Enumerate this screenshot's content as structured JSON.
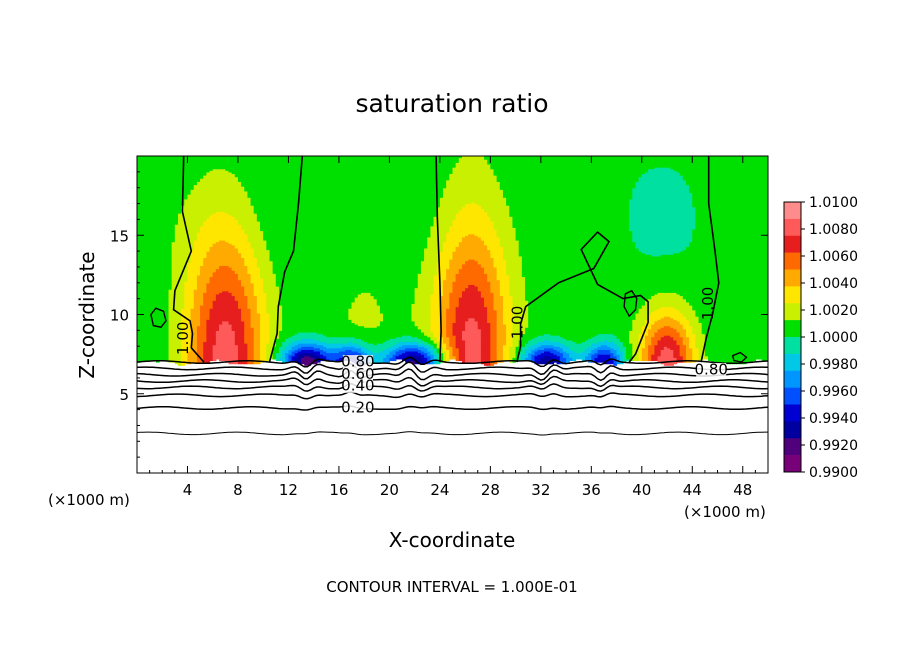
{
  "chart_data": {
    "type": "heatmap",
    "title": "saturation ratio",
    "xlabel": "X-coordinate",
    "ylabel": "Z-coordinate",
    "x_unit_left": "(×1000 m)",
    "x_unit_right": "(×1000 m)",
    "footer": "CONTOUR INTERVAL = 1.000E-01",
    "xlim": [
      0,
      50
    ],
    "ylim": [
      0,
      20
    ],
    "x_ticks": [
      4,
      8,
      12,
      16,
      20,
      24,
      28,
      32,
      36,
      40,
      44,
      48
    ],
    "y_ticks": [
      5,
      10,
      15
    ],
    "colorbar": {
      "levels": [
        "1.0100",
        "1.0080",
        "1.0060",
        "1.0040",
        "1.0020",
        "1.0000",
        "0.9980",
        "0.9960",
        "0.9940",
        "0.9920",
        "0.9900"
      ],
      "colors": [
        "#ff8c8c",
        "#ff5a5a",
        "#e61e1e",
        "#ff6a00",
        "#ffaa00",
        "#ffe600",
        "#c8f000",
        "#00e000",
        "#00e0a0",
        "#00c8e6",
        "#0096ff",
        "#0050ff",
        "#0000d2",
        "#0000a0",
        "#50007a",
        "#780078"
      ]
    },
    "contour_labels": [
      {
        "text": "1.00",
        "x": 3.7,
        "z": 8.5
      },
      {
        "text": "1.00",
        "x": 30.2,
        "z": 9.5
      },
      {
        "text": "1.00",
        "x": 45.3,
        "z": 10.7
      },
      {
        "text": "0.80",
        "x": 17.5,
        "z": 7.0
      },
      {
        "text": "0.80",
        "x": 45.5,
        "z": 6.5
      },
      {
        "text": "0.60",
        "x": 17.5,
        "z": 6.2
      },
      {
        "text": "0.40",
        "x": 17.5,
        "z": 5.5
      },
      {
        "text": "0.20",
        "x": 17.5,
        "z": 4.1
      }
    ],
    "contours_1_00": [
      [
        [
          3.7,
          20
        ],
        [
          3.6,
          16.5
        ],
        [
          4.3,
          14
        ],
        [
          3.0,
          11.5
        ],
        [
          2.9,
          10.3
        ],
        [
          4.2,
          9.6
        ],
        [
          4.4,
          8.8
        ],
        [
          4.3,
          7.9
        ],
        [
          5.3,
          7.0
        ]
      ],
      [
        [
          13.1,
          20
        ],
        [
          12.8,
          17
        ],
        [
          12.4,
          14
        ],
        [
          11.7,
          12.7
        ],
        [
          11.2,
          10.5
        ],
        [
          11.1,
          8.8
        ],
        [
          10.5,
          7.0
        ]
      ],
      [
        [
          23.7,
          20
        ],
        [
          23.8,
          16
        ],
        [
          24.0,
          12
        ],
        [
          24.1,
          9
        ],
        [
          24.0,
          7.0
        ]
      ],
      [
        [
          30.1,
          7.0
        ],
        [
          30.4,
          8.0
        ],
        [
          30.4,
          9.4
        ],
        [
          30.8,
          10.5
        ],
        [
          33.4,
          12.0
        ],
        [
          36.2,
          12.9
        ],
        [
          37.4,
          14.6
        ],
        [
          36.5,
          15.2
        ],
        [
          35.2,
          14.1
        ],
        [
          36.5,
          11.9
        ],
        [
          38.5,
          11.0
        ],
        [
          39.9,
          11.2
        ],
        [
          40.5,
          10.8
        ],
        [
          40.5,
          9.5
        ],
        [
          40.0,
          8.5
        ],
        [
          39.5,
          7.5
        ],
        [
          39.0,
          7.0
        ]
      ],
      [
        [
          45.3,
          20
        ],
        [
          45.3,
          17
        ],
        [
          45.8,
          14
        ],
        [
          46.1,
          12
        ],
        [
          45.6,
          10
        ],
        [
          45.1,
          8.5
        ],
        [
          44.7,
          7.0
        ]
      ]
    ],
    "closed_contours_1_00": [
      [
        [
          1.1,
          10.0
        ],
        [
          1.5,
          10.4
        ],
        [
          2.1,
          10.2
        ],
        [
          2.3,
          9.6
        ],
        [
          1.9,
          9.2
        ],
        [
          1.3,
          9.3
        ],
        [
          1.1,
          10.0
        ]
      ],
      [
        [
          38.7,
          11.3
        ],
        [
          39.2,
          11.5
        ],
        [
          39.6,
          11.0
        ],
        [
          39.5,
          10.3
        ],
        [
          39.0,
          9.9
        ],
        [
          38.6,
          10.5
        ],
        [
          38.7,
          11.3
        ]
      ],
      [
        [
          47.2,
          7.4
        ],
        [
          47.8,
          7.6
        ],
        [
          48.3,
          7.3
        ],
        [
          47.9,
          7.0
        ],
        [
          47.3,
          7.1
        ],
        [
          47.2,
          7.4
        ]
      ]
    ],
    "profile_lines": [
      {
        "level": "0.80",
        "z": 7.0,
        "amp": 0.4
      },
      {
        "level": "0.70",
        "z": 6.6,
        "amp": 0.5
      },
      {
        "level": "0.60",
        "z": 6.2,
        "amp": 0.5
      },
      {
        "level": "0.50",
        "z": 5.8,
        "amp": 0.4
      },
      {
        "level": "0.40",
        "z": 5.4,
        "amp": 0.3
      },
      {
        "level": "0.30",
        "z": 4.9,
        "amp": 0.2
      },
      {
        "level": "0.20",
        "z": 4.1,
        "amp": 0.1
      },
      {
        "level": "0.10",
        "z": 2.5,
        "amp": 0.05
      }
    ],
    "supersaturation_cells": [
      {
        "xc": 7.0,
        "zc": 7.0,
        "w": 3.2,
        "h": 9.5,
        "peak": 1.008
      },
      {
        "xc": 26.5,
        "zc": 7.0,
        "w": 3.0,
        "h": 10.5,
        "peak": 1.008
      },
      {
        "xc": 42.0,
        "zc": 7.0,
        "w": 2.2,
        "h": 3.5,
        "peak": 1.008
      },
      {
        "xc": 18.0,
        "zc": 8.5,
        "w": 4.0,
        "h": 6.5,
        "peak": 1.0012
      },
      {
        "xc": 34.5,
        "zc": 8.5,
        "w": 3.5,
        "h": 5.0,
        "peak": 1.0008
      }
    ],
    "subsaturation_bands": [
      {
        "xc": 13.5,
        "w": 2.0,
        "depth": 0.991
      },
      {
        "xc": 17.0,
        "w": 1.5,
        "depth": 0.993
      },
      {
        "xc": 22.0,
        "w": 2.5,
        "depth": 0.991
      },
      {
        "xc": 32.5,
        "w": 2.0,
        "depth": 0.992
      },
      {
        "xc": 37.0,
        "w": 1.5,
        "depth": 0.993
      }
    ]
  }
}
